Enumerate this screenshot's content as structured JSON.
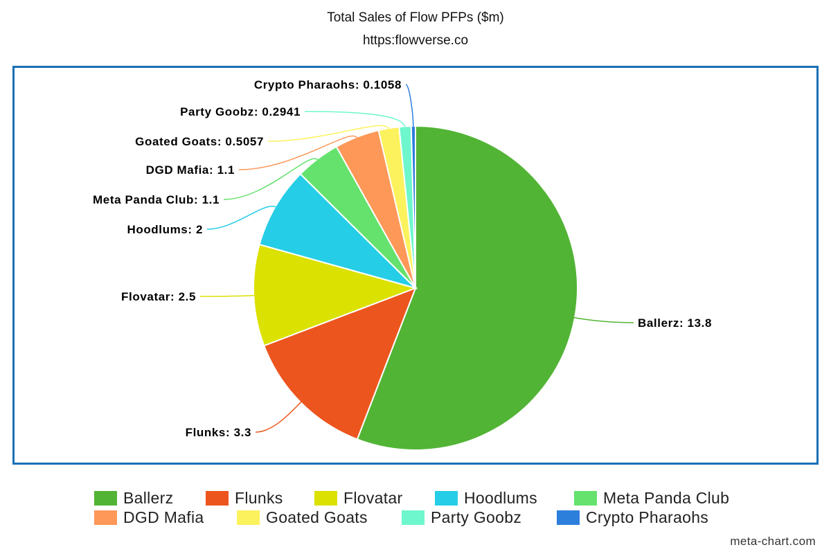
{
  "chart_data": {
    "type": "pie",
    "title": "Total Sales of Flow PFPs ($m)",
    "subtitle": "https:flowverse.co",
    "slices": [
      {
        "name": "Ballerz",
        "value": 13.8,
        "label": "Ballerz: 13.8",
        "color": "#52b435"
      },
      {
        "name": "Flunks",
        "value": 3.3,
        "label": "Flunks: 3.3",
        "color": "#ec551d"
      },
      {
        "name": "Flovatar",
        "value": 2.5,
        "label": "Flovatar: 2.5",
        "color": "#dbe100"
      },
      {
        "name": "Hoodlums",
        "value": 2,
        "label": "Hoodlums: 2",
        "color": "#26cde6"
      },
      {
        "name": "Meta Panda Club",
        "value": 1.1,
        "label": "Meta Panda Club: 1.1",
        "color": "#65e26d"
      },
      {
        "name": "DGD Mafia",
        "value": 1.1,
        "label": "DGD Mafia: 1.1",
        "color": "#fd9858"
      },
      {
        "name": "Goated Goats",
        "value": 0.5057,
        "label": "Goated Goats: 0.5057",
        "color": "#fcf25d"
      },
      {
        "name": "Party Goobz",
        "value": 0.2941,
        "label": "Party Goobz: 0.2941",
        "color": "#6ef6cd"
      },
      {
        "name": "Crypto Pharaohs",
        "value": 0.1058,
        "label": "Crypto Pharaohs: 0.1058",
        "color": "#2d7fdc"
      }
    ],
    "legend_position": "bottom",
    "start_angle": "12 o'clock",
    "direction": "clockwise"
  },
  "frame_color": "#1a6fb5",
  "watermark": "meta-chart.com"
}
